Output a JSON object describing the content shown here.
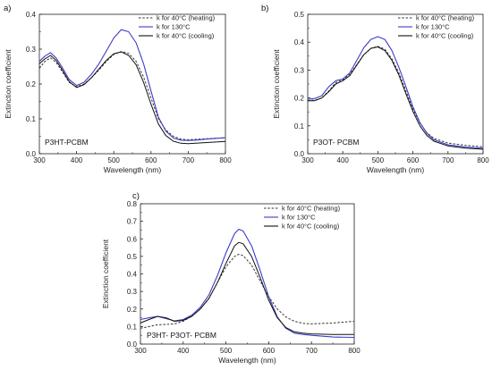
{
  "figure": {
    "colors": {
      "heating": "#333333",
      "hot": "#3c3cc8",
      "cooling": "#111111"
    }
  },
  "chart_data": [
    {
      "type": "line",
      "panel_label": "a)",
      "annotation": "P3HT-PCBM",
      "xlabel": "Wavelength (nm)",
      "ylabel": "Extinction coefficient",
      "xlim": [
        300,
        800
      ],
      "ylim": [
        0,
        0.4
      ],
      "xticks": [
        "300",
        "400",
        "500",
        "600",
        "700",
        "800"
      ],
      "yticks": [
        "0.0",
        "0.1",
        "0.2",
        "0.3",
        "0.4"
      ],
      "legend_position": "top-right",
      "series": [
        {
          "name": "k for 40°C (heating)",
          "style": "dashed",
          "color": "#333333",
          "x": [
            300,
            315,
            330,
            345,
            360,
            380,
            400,
            420,
            440,
            460,
            480,
            500,
            520,
            540,
            560,
            580,
            600,
            620,
            640,
            660,
            680,
            700,
            720,
            750,
            800
          ],
          "y": [
            0.245,
            0.265,
            0.275,
            0.262,
            0.238,
            0.205,
            0.192,
            0.2,
            0.218,
            0.24,
            0.265,
            0.285,
            0.293,
            0.288,
            0.265,
            0.22,
            0.16,
            0.1,
            0.068,
            0.05,
            0.042,
            0.04,
            0.041,
            0.043,
            0.046
          ]
        },
        {
          "name": "k for 130°C",
          "style": "solid",
          "color": "#3c3cc8",
          "x": [
            300,
            315,
            330,
            345,
            360,
            380,
            400,
            420,
            440,
            460,
            480,
            500,
            520,
            540,
            560,
            580,
            600,
            620,
            640,
            660,
            680,
            700,
            720,
            750,
            800
          ],
          "y": [
            0.265,
            0.28,
            0.29,
            0.275,
            0.25,
            0.213,
            0.196,
            0.205,
            0.228,
            0.258,
            0.295,
            0.332,
            0.356,
            0.35,
            0.318,
            0.258,
            0.18,
            0.105,
            0.065,
            0.045,
            0.039,
            0.038,
            0.039,
            0.042,
            0.046
          ]
        },
        {
          "name": "k for 40°C (cooling)",
          "style": "solid",
          "color": "#111111",
          "x": [
            300,
            315,
            330,
            345,
            360,
            380,
            400,
            420,
            440,
            460,
            480,
            500,
            520,
            540,
            560,
            580,
            600,
            620,
            640,
            660,
            680,
            700,
            720,
            750,
            800
          ],
          "y": [
            0.258,
            0.272,
            0.282,
            0.268,
            0.243,
            0.207,
            0.19,
            0.198,
            0.218,
            0.243,
            0.268,
            0.287,
            0.292,
            0.282,
            0.255,
            0.205,
            0.142,
            0.085,
            0.052,
            0.036,
            0.03,
            0.029,
            0.03,
            0.032,
            0.035
          ]
        }
      ]
    },
    {
      "type": "line",
      "panel_label": "b)",
      "annotation": "P3OT- PCBM",
      "xlabel": "Wavelength (nm)",
      "ylabel": "Extinction coefficient",
      "xlim": [
        300,
        800
      ],
      "ylim": [
        0,
        0.5
      ],
      "xticks": [
        "300",
        "400",
        "500",
        "600",
        "700",
        "800"
      ],
      "yticks": [
        "0.0",
        "0.1",
        "0.2",
        "0.3",
        "0.4",
        "0.5"
      ],
      "legend_position": "top-right",
      "series": [
        {
          "name": "k for 40°C (heating)",
          "style": "dashed",
          "color": "#333333",
          "x": [
            300,
            320,
            340,
            360,
            380,
            400,
            420,
            440,
            460,
            480,
            500,
            520,
            540,
            560,
            580,
            600,
            620,
            640,
            660,
            700,
            750,
            800
          ],
          "y": [
            0.19,
            0.192,
            0.2,
            0.225,
            0.255,
            0.265,
            0.285,
            0.32,
            0.355,
            0.378,
            0.385,
            0.375,
            0.34,
            0.29,
            0.225,
            0.16,
            0.11,
            0.075,
            0.055,
            0.038,
            0.03,
            0.025
          ]
        },
        {
          "name": "k for 130°C",
          "style": "solid",
          "color": "#3c3cc8",
          "x": [
            300,
            320,
            340,
            360,
            380,
            400,
            420,
            440,
            460,
            480,
            500,
            520,
            540,
            560,
            580,
            600,
            620,
            640,
            660,
            700,
            750,
            800
          ],
          "y": [
            0.195,
            0.198,
            0.208,
            0.24,
            0.262,
            0.268,
            0.29,
            0.335,
            0.38,
            0.41,
            0.42,
            0.41,
            0.37,
            0.31,
            0.24,
            0.168,
            0.112,
            0.073,
            0.05,
            0.032,
            0.024,
            0.02
          ]
        },
        {
          "name": "k for 40°C (cooling)",
          "style": "solid",
          "color": "#111111",
          "x": [
            300,
            320,
            340,
            360,
            380,
            400,
            420,
            440,
            460,
            480,
            500,
            520,
            540,
            560,
            580,
            600,
            620,
            640,
            660,
            700,
            750,
            800
          ],
          "y": [
            0.19,
            0.19,
            0.2,
            0.222,
            0.25,
            0.262,
            0.28,
            0.318,
            0.355,
            0.378,
            0.383,
            0.37,
            0.335,
            0.282,
            0.215,
            0.152,
            0.1,
            0.065,
            0.045,
            0.028,
            0.02,
            0.016
          ]
        }
      ]
    },
    {
      "type": "line",
      "panel_label": "c)",
      "annotation": "P3HT- P3OT- PCBM",
      "xlabel": "Wavelength (nm)",
      "ylabel": "Extinction coefficient",
      "xlim": [
        300,
        800
      ],
      "ylim": [
        0,
        0.8
      ],
      "xticks": [
        "300",
        "400",
        "500",
        "600",
        "700",
        "800"
      ],
      "yticks": [
        "0.0",
        "0.1",
        "0.2",
        "0.3",
        "0.4",
        "0.5",
        "0.6",
        "0.7",
        "0.8"
      ],
      "legend_position": "top-right",
      "series": [
        {
          "name": "k for 40°C (heating)",
          "style": "dashed",
          "color": "#333333",
          "x": [
            300,
            320,
            340,
            360,
            380,
            400,
            420,
            440,
            460,
            480,
            500,
            520,
            530,
            540,
            560,
            580,
            600,
            620,
            640,
            660,
            680,
            700,
            750,
            800
          ],
          "y": [
            0.09,
            0.1,
            0.11,
            0.112,
            0.115,
            0.13,
            0.16,
            0.2,
            0.26,
            0.35,
            0.44,
            0.5,
            0.512,
            0.505,
            0.45,
            0.36,
            0.27,
            0.2,
            0.155,
            0.13,
            0.118,
            0.115,
            0.12,
            0.13
          ]
        },
        {
          "name": "k for 130°C",
          "style": "solid",
          "color": "#3c3cc8",
          "x": [
            300,
            320,
            340,
            360,
            380,
            400,
            420,
            440,
            460,
            480,
            500,
            520,
            530,
            540,
            560,
            580,
            600,
            620,
            640,
            660,
            680,
            700,
            750,
            800
          ],
          "y": [
            0.14,
            0.15,
            0.158,
            0.145,
            0.132,
            0.14,
            0.165,
            0.21,
            0.28,
            0.39,
            0.52,
            0.63,
            0.655,
            0.645,
            0.56,
            0.42,
            0.27,
            0.155,
            0.09,
            0.062,
            0.055,
            0.05,
            0.04,
            0.038
          ]
        },
        {
          "name": "k for 40°C (cooling)",
          "style": "solid",
          "color": "#111111",
          "x": [
            300,
            320,
            340,
            360,
            380,
            400,
            420,
            440,
            460,
            480,
            500,
            520,
            530,
            540,
            560,
            580,
            600,
            620,
            640,
            660,
            680,
            700,
            750,
            800
          ],
          "y": [
            0.12,
            0.14,
            0.158,
            0.15,
            0.13,
            0.135,
            0.158,
            0.2,
            0.26,
            0.35,
            0.46,
            0.56,
            0.58,
            0.572,
            0.5,
            0.38,
            0.25,
            0.15,
            0.095,
            0.07,
            0.062,
            0.058,
            0.055,
            0.055
          ]
        }
      ]
    }
  ]
}
